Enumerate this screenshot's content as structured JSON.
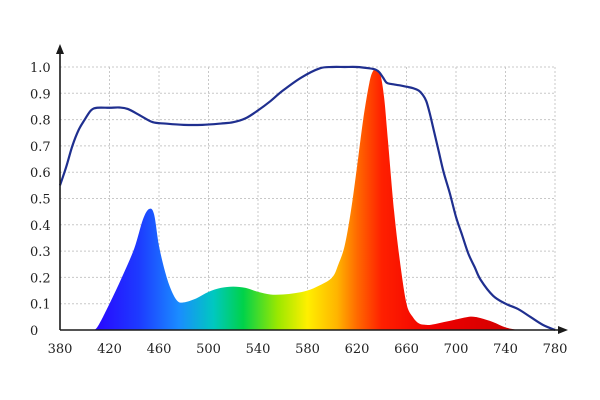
{
  "chart_data": {
    "type": "area",
    "title": "",
    "xlabel": "",
    "ylabel": "",
    "xlim": [
      380,
      780
    ],
    "ylim": [
      0,
      1.0
    ],
    "x_ticks": [
      380,
      420,
      460,
      500,
      540,
      580,
      620,
      660,
      700,
      740,
      780
    ],
    "y_ticks": [
      "0",
      "0.1",
      "0.2",
      "0.3",
      "0.4",
      "0.5",
      "0.6",
      "0.7",
      "0.8",
      "0.9",
      "1.0"
    ],
    "grid": true,
    "legend": "none",
    "series": [
      {
        "kind": "area",
        "fill": "visible-spectrum-gradient",
        "x": [
          405,
          410,
          420,
          430,
          440,
          447,
          452,
          456,
          460,
          465,
          470,
          475,
          480,
          490,
          500,
          510,
          520,
          530,
          540,
          550,
          560,
          570,
          580,
          590,
          600,
          605,
          610,
          615,
          620,
          625,
          630,
          633,
          636,
          639,
          642,
          645,
          650,
          655,
          660,
          665,
          670,
          675,
          680,
          690,
          700,
          710,
          715,
          720,
          730,
          740,
          750
        ],
        "y": [
          0,
          0.01,
          0.1,
          0.2,
          0.31,
          0.42,
          0.46,
          0.44,
          0.32,
          0.22,
          0.15,
          0.11,
          0.105,
          0.12,
          0.145,
          0.16,
          0.165,
          0.16,
          0.145,
          0.135,
          0.135,
          0.14,
          0.15,
          0.17,
          0.2,
          0.25,
          0.32,
          0.45,
          0.62,
          0.8,
          0.94,
          0.985,
          0.99,
          0.97,
          0.88,
          0.72,
          0.45,
          0.25,
          0.1,
          0.05,
          0.025,
          0.02,
          0.02,
          0.03,
          0.04,
          0.05,
          0.05,
          0.045,
          0.03,
          0.01,
          0
        ]
      },
      {
        "kind": "line",
        "color": "#1f2f8f",
        "x": [
          380,
          385,
          390,
          395,
          400,
          405,
          410,
          420,
          428,
          435,
          445,
          455,
          465,
          480,
          495,
          510,
          520,
          530,
          540,
          550,
          560,
          575,
          590,
          600,
          610,
          620,
          630,
          635,
          638,
          641,
          644,
          648,
          655,
          660,
          665,
          670,
          673,
          676,
          679,
          682,
          686,
          690,
          695,
          700,
          705,
          710,
          715,
          720,
          730,
          740,
          750,
          760,
          770,
          780
        ],
        "y": [
          0.55,
          0.62,
          0.7,
          0.76,
          0.8,
          0.835,
          0.845,
          0.845,
          0.846,
          0.84,
          0.815,
          0.79,
          0.785,
          0.78,
          0.78,
          0.785,
          0.79,
          0.805,
          0.835,
          0.87,
          0.91,
          0.96,
          0.995,
          1.0,
          1.0,
          1.0,
          0.995,
          0.99,
          0.98,
          0.96,
          0.94,
          0.935,
          0.93,
          0.925,
          0.92,
          0.91,
          0.895,
          0.87,
          0.82,
          0.76,
          0.68,
          0.6,
          0.52,
          0.43,
          0.36,
          0.29,
          0.24,
          0.19,
          0.13,
          0.1,
          0.08,
          0.05,
          0.02,
          0
        ]
      }
    ]
  }
}
